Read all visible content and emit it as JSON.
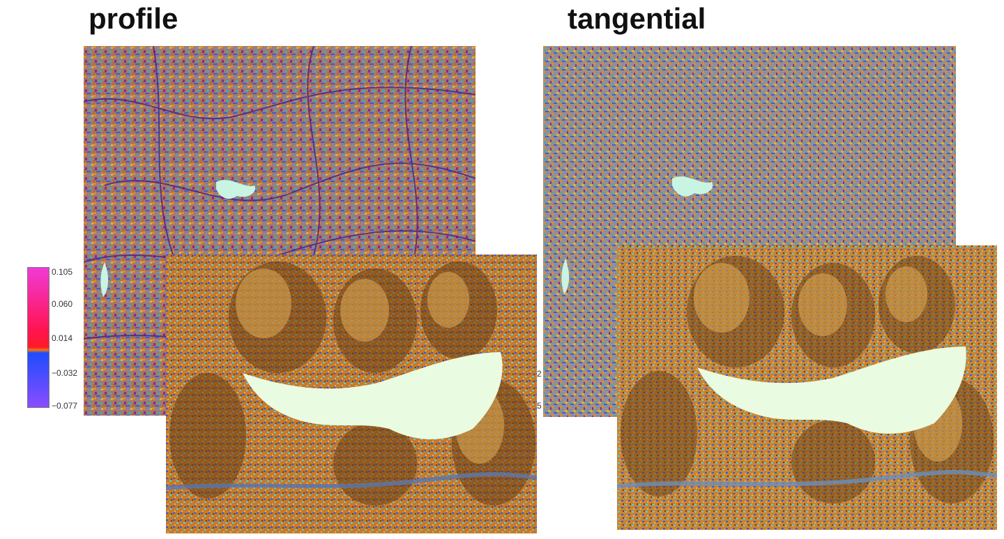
{
  "panels": {
    "left": {
      "title": "profile"
    },
    "right": {
      "title": "tangential"
    }
  },
  "legend": {
    "ticks": [
      "0.105",
      "0.060",
      "0.014",
      "−0.032",
      "−0.077"
    ],
    "colors": {
      "top": "#f03ad6",
      "upper": "#ff1450",
      "mid": "#f07a10",
      "lower": "#1f4cff",
      "bottom": "#8a4dff"
    }
  },
  "edge_labels": {
    "upper": "2",
    "lower": "5"
  },
  "palette": {
    "texture": [
      "#e08a2c",
      "#6d8fd1",
      "#8a2a90",
      "#4aa7b0",
      "#d9b23a",
      "#3c5bd6",
      "#b9672f"
    ],
    "shade_dark": "#6a3d12",
    "shade_mid": "#c67a2a",
    "shade_light": "#e8b35a",
    "blue": "#2a5bff",
    "cyan": "#47d6e8",
    "flat": "#e9fbe0"
  }
}
